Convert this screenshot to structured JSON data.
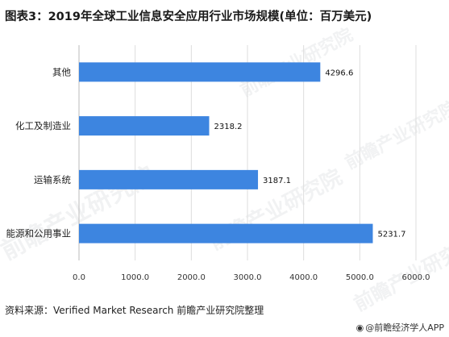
{
  "title": "图表3：2019年全球工业信息安全应用行业市场规模(单位：百万美元)",
  "source": "资料来源：Verified Market Research 前瞻产业研究院整理",
  "credit": "@前瞻经济学人APP",
  "credit_icon": "wechat-icon",
  "watermark_text": "前瞻产业研究院",
  "colors": {
    "bar": "#3d85e0",
    "gridline": "#dddddd",
    "axis": "#bbbbbb"
  },
  "chart_data": {
    "type": "bar",
    "orientation": "horizontal",
    "title": "图表3：2019年全球工业信息安全应用行业市场规模(单位：百万美元)",
    "categories": [
      "其他",
      "化工及制造业",
      "运输系统",
      "能源和公用事业"
    ],
    "values": [
      4296.6,
      2318.2,
      3187.1,
      5231.7
    ],
    "value_labels": [
      "4296.6",
      "2318.2",
      "3187.1",
      "5231.7"
    ],
    "xlim": [
      0,
      6000
    ],
    "xticks": [
      0,
      1000,
      2000,
      3000,
      4000,
      5000,
      6000
    ],
    "xtick_labels": [
      "0.0",
      "1000.0",
      "2000.0",
      "3000.0",
      "4000.0",
      "5000.0",
      "6000.0"
    ],
    "xlabel": "",
    "ylabel": "",
    "grid": true,
    "legend": "none"
  }
}
